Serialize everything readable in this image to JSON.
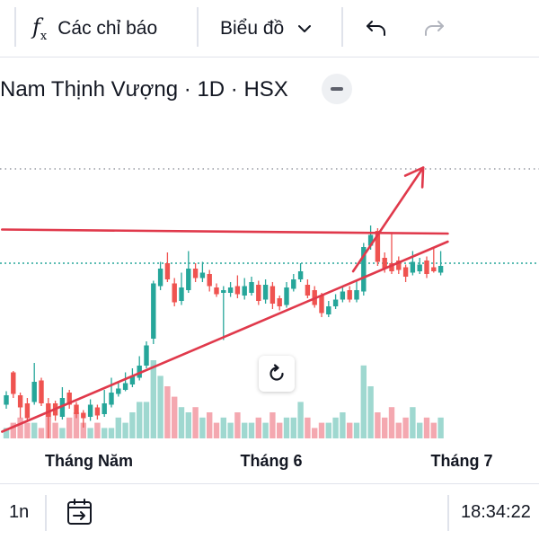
{
  "toolbar": {
    "indicators_label": "Các chỉ báo",
    "chart_type_label": "Biểu đồ",
    "icons": [
      "fx-icon",
      "chevron-down-icon",
      "undo-icon",
      "redo-icon"
    ]
  },
  "legend": {
    "title": "Nam Thịnh Vượng · 1D · HSX"
  },
  "colors": {
    "up": "#26a69a",
    "down": "#ef5350",
    "volume_up": "#9fd8d0",
    "volume_down": "#f4a8b0",
    "trendline": "#e0394b",
    "price_line": "#26a69a"
  },
  "time_axis": {
    "labels": [
      "Tháng Năm",
      "Tháng 6",
      "Tháng 7"
    ]
  },
  "bottom_bar": {
    "range": "1n",
    "time": "18:34:22"
  },
  "chart_data": {
    "type": "candlestick",
    "candles": [
      {
        "d": "u",
        "o": 2.5,
        "c": 3.2,
        "h": 3.5,
        "l": 2.2,
        "v": 2
      },
      {
        "d": "d",
        "o": 4.9,
        "c": 3.3,
        "h": 5.0,
        "l": 3.0,
        "v": 3
      },
      {
        "d": "d",
        "o": 3.2,
        "c": 2.3,
        "h": 3.4,
        "l": 1.5,
        "v": 4
      },
      {
        "d": "d",
        "o": 2.6,
        "c": 1.5,
        "h": 3.0,
        "l": 1.2,
        "v": 3
      },
      {
        "d": "u",
        "o": 2.7,
        "c": 4.2,
        "h": 5.6,
        "l": 2.5,
        "v": 3
      },
      {
        "d": "d",
        "o": 4.3,
        "c": 2.6,
        "h": 4.5,
        "l": 2.4,
        "v": 2
      },
      {
        "d": "d",
        "o": 2.6,
        "c": 1.6,
        "h": 3.0,
        "l": 0.0,
        "v": 5
      },
      {
        "d": "d",
        "o": 2.6,
        "c": 1.7,
        "h": 2.8,
        "l": 1.3,
        "v": 3
      },
      {
        "d": "u",
        "o": 1.6,
        "c": 3.0,
        "h": 3.8,
        "l": 1.4,
        "v": 2
      },
      {
        "d": "d",
        "o": 3.4,
        "c": 2.5,
        "h": 3.6,
        "l": 2.2,
        "v": 4
      },
      {
        "d": "d",
        "o": 2.5,
        "c": 1.8,
        "h": 2.7,
        "l": 1.5,
        "v": 5
      },
      {
        "d": "d",
        "o": 1.9,
        "c": 1.5,
        "h": 2.1,
        "l": 0.8,
        "v": 3
      },
      {
        "d": "u",
        "o": 1.6,
        "c": 2.5,
        "h": 2.9,
        "l": 1.3,
        "v": 2
      },
      {
        "d": "d",
        "o": 2.3,
        "c": 1.7,
        "h": 2.5,
        "l": 1.4,
        "v": 3
      },
      {
        "d": "u",
        "o": 1.8,
        "c": 2.6,
        "h": 3.6,
        "l": 1.6,
        "v": 2
      },
      {
        "d": "u",
        "o": 2.5,
        "c": 3.4,
        "h": 4.5,
        "l": 2.3,
        "v": 2
      },
      {
        "d": "u",
        "o": 3.3,
        "c": 3.7,
        "h": 4.1,
        "l": 3.1,
        "v": 4
      },
      {
        "d": "u",
        "o": 3.6,
        "c": 4.1,
        "h": 4.9,
        "l": 3.5,
        "v": 3
      },
      {
        "d": "u",
        "o": 4.0,
        "c": 4.6,
        "h": 5.2,
        "l": 3.8,
        "v": 5
      },
      {
        "d": "u",
        "o": 4.5,
        "c": 5.4,
        "h": 6.1,
        "l": 4.3,
        "v": 7
      },
      {
        "d": "u",
        "o": 5.4,
        "c": 6.9,
        "h": 7.2,
        "l": 5.2,
        "v": 7
      },
      {
        "d": "u",
        "o": 7.4,
        "c": 11.5,
        "h": 11.7,
        "l": 7.0,
        "v": 15
      },
      {
        "d": "u",
        "o": 11.3,
        "c": 12.6,
        "h": 13.1,
        "l": 11.0,
        "v": 12
      },
      {
        "d": "d",
        "o": 13.0,
        "c": 11.8,
        "h": 13.8,
        "l": 11.6,
        "v": 10
      },
      {
        "d": "d",
        "o": 11.5,
        "c": 10.1,
        "h": 11.9,
        "l": 9.8,
        "v": 8
      },
      {
        "d": "u",
        "o": 10.2,
        "c": 11.2,
        "h": 12.3,
        "l": 9.9,
        "v": 6
      },
      {
        "d": "u",
        "o": 11.0,
        "c": 12.6,
        "h": 13.9,
        "l": 10.8,
        "v": 5
      },
      {
        "d": "d",
        "o": 12.6,
        "c": 11.9,
        "h": 13.0,
        "l": 11.6,
        "v": 6
      },
      {
        "d": "u",
        "o": 11.9,
        "c": 12.3,
        "h": 13.1,
        "l": 11.6,
        "v": 4
      },
      {
        "d": "d",
        "o": 12.2,
        "c": 11.3,
        "h": 12.5,
        "l": 10.9,
        "v": 5
      },
      {
        "d": "d",
        "o": 11.2,
        "c": 10.7,
        "h": 11.5,
        "l": 10.5,
        "v": 3
      },
      {
        "d": "u",
        "o": 10.8,
        "c": 11.0,
        "h": 11.3,
        "l": 7.3,
        "v": 4
      },
      {
        "d": "u",
        "o": 10.8,
        "c": 11.2,
        "h": 11.6,
        "l": 10.5,
        "v": 3
      },
      {
        "d": "d",
        "o": 11.3,
        "c": 10.7,
        "h": 12.1,
        "l": 10.4,
        "v": 5
      },
      {
        "d": "u",
        "o": 10.6,
        "c": 11.3,
        "h": 11.9,
        "l": 10.3,
        "v": 3
      },
      {
        "d": "u",
        "o": 10.8,
        "c": 11.6,
        "h": 12.0,
        "l": 10.6,
        "v": 3
      },
      {
        "d": "d",
        "o": 11.4,
        "c": 10.2,
        "h": 11.7,
        "l": 9.9,
        "v": 4
      },
      {
        "d": "u",
        "o": 10.3,
        "c": 11.4,
        "h": 11.8,
        "l": 10.0,
        "v": 3
      },
      {
        "d": "d",
        "o": 11.3,
        "c": 10.0,
        "h": 11.6,
        "l": 9.6,
        "v": 5
      },
      {
        "d": "d",
        "o": 10.4,
        "c": 9.8,
        "h": 10.6,
        "l": 9.5,
        "v": 3
      },
      {
        "d": "u",
        "o": 9.9,
        "c": 11.2,
        "h": 11.6,
        "l": 9.7,
        "v": 4
      },
      {
        "d": "u",
        "o": 11.1,
        "c": 11.8,
        "h": 12.2,
        "l": 10.9,
        "v": 4
      },
      {
        "d": "u",
        "o": 11.8,
        "c": 12.4,
        "h": 13.0,
        "l": 11.6,
        "v": 7
      },
      {
        "d": "d",
        "o": 11.4,
        "c": 10.6,
        "h": 11.8,
        "l": 10.4,
        "v": 4
      },
      {
        "d": "d",
        "o": 11.0,
        "c": 9.9,
        "h": 11.3,
        "l": 9.7,
        "v": 2
      },
      {
        "d": "d",
        "o": 10.6,
        "c": 9.3,
        "h": 10.8,
        "l": 9.0,
        "v": 3
      },
      {
        "d": "u",
        "o": 9.2,
        "c": 9.8,
        "h": 10.2,
        "l": 9.0,
        "v": 3
      },
      {
        "d": "u",
        "o": 9.8,
        "c": 10.3,
        "h": 10.7,
        "l": 9.6,
        "v": 4
      },
      {
        "d": "u",
        "o": 10.3,
        "c": 10.9,
        "h": 11.2,
        "l": 10.1,
        "v": 5
      },
      {
        "d": "d",
        "o": 11.0,
        "c": 10.3,
        "h": 11.3,
        "l": 10.1,
        "v": 3
      },
      {
        "d": "u",
        "o": 10.3,
        "c": 11.0,
        "h": 11.8,
        "l": 10.1,
        "v": 3
      },
      {
        "d": "u",
        "o": 10.9,
        "c": 14.2,
        "h": 14.5,
        "l": 10.6,
        "v": 14
      },
      {
        "d": "u",
        "o": 14.3,
        "c": 15.1,
        "h": 15.8,
        "l": 14.0,
        "v": 10
      },
      {
        "d": "d",
        "o": 15.4,
        "c": 13.1,
        "h": 15.6,
        "l": 12.8,
        "v": 5
      },
      {
        "d": "d",
        "o": 13.4,
        "c": 12.6,
        "h": 13.8,
        "l": 12.3,
        "v": 4
      },
      {
        "d": "d",
        "o": 13.0,
        "c": 12.4,
        "h": 15.2,
        "l": 12.2,
        "v": 6
      },
      {
        "d": "d",
        "o": 13.2,
        "c": 12.5,
        "h": 13.5,
        "l": 12.2,
        "v": 3
      },
      {
        "d": "d",
        "o": 12.7,
        "c": 12.0,
        "h": 12.9,
        "l": 11.6,
        "v": 4
      },
      {
        "d": "u",
        "o": 12.3,
        "c": 13.1,
        "h": 13.9,
        "l": 12.1,
        "v": 6
      },
      {
        "d": "u",
        "o": 12.4,
        "c": 12.9,
        "h": 13.4,
        "l": 12.2,
        "v": 3
      },
      {
        "d": "d",
        "o": 13.2,
        "c": 12.2,
        "h": 13.5,
        "l": 11.9,
        "v": 4
      },
      {
        "d": "d",
        "o": 12.7,
        "c": 12.4,
        "h": 14.1,
        "l": 12.3,
        "v": 3
      },
      {
        "d": "u",
        "o": 12.3,
        "c": 12.8,
        "h": 13.9,
        "l": 12.1,
        "v": 4
      }
    ],
    "price_line_y": 13.0,
    "dotted_line_y": 20.0,
    "trendlines": [
      {
        "name": "resistance",
        "from": [
          -0.6,
          15.5
        ],
        "to": [
          63.0,
          15.2
        ]
      },
      {
        "name": "support",
        "from": [
          -0.6,
          0.5
        ],
        "to": [
          63.0,
          14.6
        ]
      }
    ],
    "projection": {
      "from": [
        49.5,
        12.4
      ],
      "to": [
        59.5,
        20.1
      ]
    },
    "ylim": [
      0,
      22
    ],
    "grid": false,
    "legend": "top-left"
  }
}
